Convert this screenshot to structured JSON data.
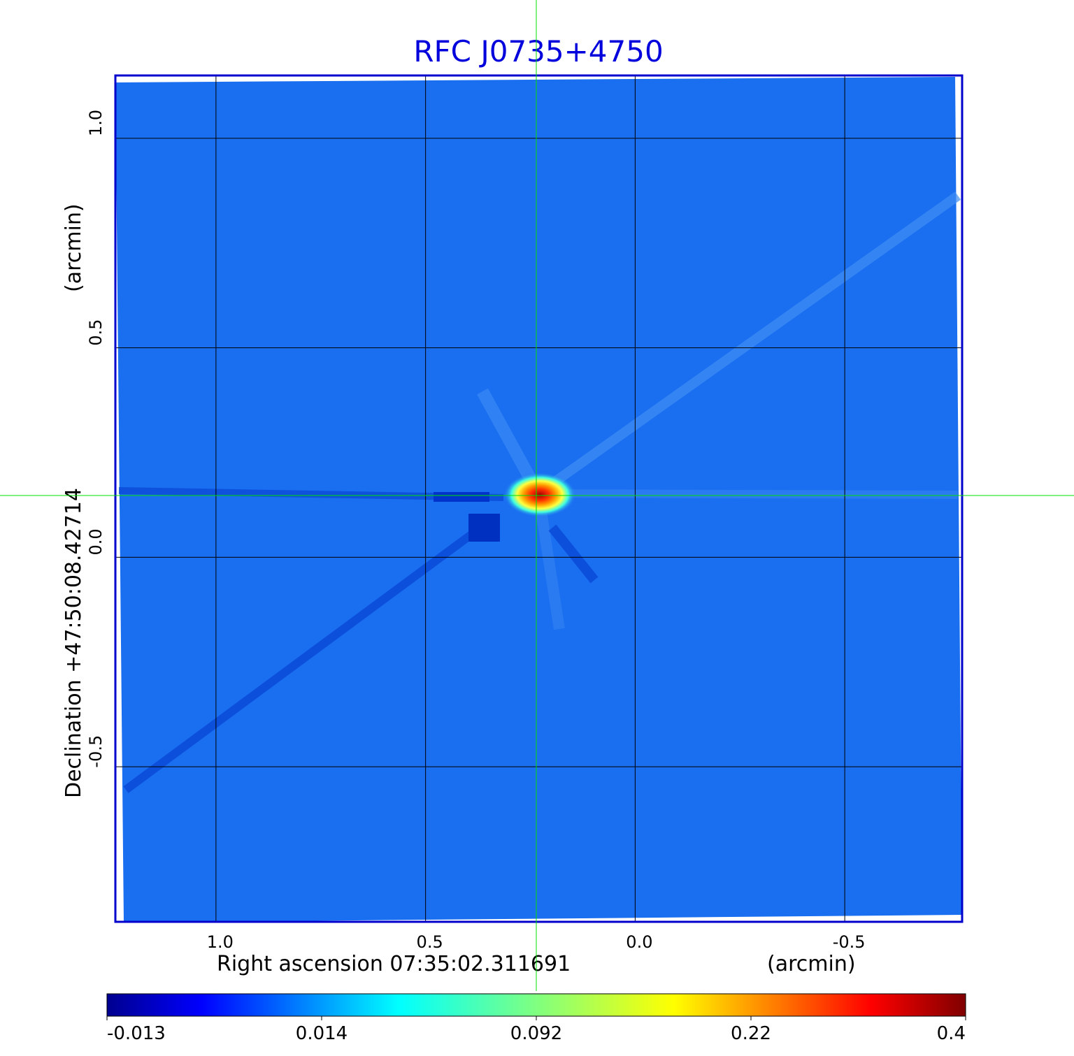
{
  "chart_data": {
    "type": "heatmap",
    "title": "RFC J0735+4750",
    "xlabel": "Right ascension  07:35:02.311691",
    "xunit": "(arcmin)",
    "ylabel": "Declination  +47:50:08.42714",
    "yunit": "(arcmin)",
    "x_ticks": [
      "1.0",
      "0.5",
      "0.0",
      "-0.5"
    ],
    "x_tick_values": [
      1.0,
      0.5,
      0.0,
      -0.5
    ],
    "y_ticks": [
      "1.0",
      "0.5",
      "0.0",
      "-0.5"
    ],
    "y_tick_values": [
      1.0,
      0.5,
      0.0,
      -0.5
    ],
    "xlim": [
      1.24,
      -0.78
    ],
    "ylim": [
      -0.87,
      1.15
    ],
    "grid": true,
    "crosshair": {
      "x": 0.24,
      "y": 0.145
    },
    "colorbar": {
      "ticks": [
        "-0.013",
        "0.014",
        "0.092",
        "0.22",
        "0.4"
      ],
      "tick_values": [
        -0.013,
        0.014,
        0.092,
        0.22,
        0.4
      ],
      "colormap": "jet"
    },
    "peak": {
      "x": 0.23,
      "y": 0.145,
      "value": 0.4
    },
    "background_value": 0.0
  },
  "colors": {
    "title": "#0000dd",
    "frame": "#0000cc",
    "crosshair": "#00e000",
    "grid": "#000000",
    "background_map": "#1a6ef0"
  }
}
